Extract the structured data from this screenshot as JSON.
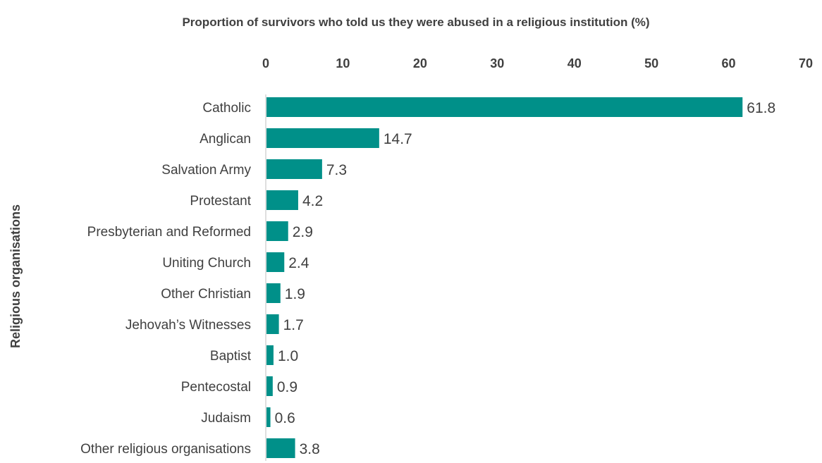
{
  "chart_data": {
    "type": "bar",
    "orientation": "horizontal",
    "title": "Proportion of survivors who told us they were abused in a religious institution (%)",
    "xlabel": "",
    "ylabel": "Religious organisations",
    "xlim": [
      0,
      70
    ],
    "xticks": [
      "0",
      "10",
      "20",
      "30",
      "40",
      "50",
      "60",
      "70"
    ],
    "x_axis_position": "top",
    "grid": false,
    "legend": "none",
    "bar_color": "#009089",
    "categories": [
      "Catholic",
      "Anglican",
      "Salvation Army",
      "Protestant",
      "Presbyterian and Reformed",
      "Uniting Church",
      "Other Christian",
      "Jehovah’s Witnesses",
      "Baptist",
      "Pentecostal",
      "Judaism",
      "Other religious organisations"
    ],
    "values": [
      61.8,
      14.7,
      7.3,
      4.2,
      2.9,
      2.4,
      1.9,
      1.7,
      1.0,
      0.9,
      0.6,
      3.8
    ],
    "data_labels": [
      "61.8",
      "14.7",
      "7.3",
      "4.2",
      "2.9",
      "2.4",
      "1.9",
      "1.7",
      "1.0",
      "0.9",
      "0.6",
      "3.8"
    ]
  }
}
